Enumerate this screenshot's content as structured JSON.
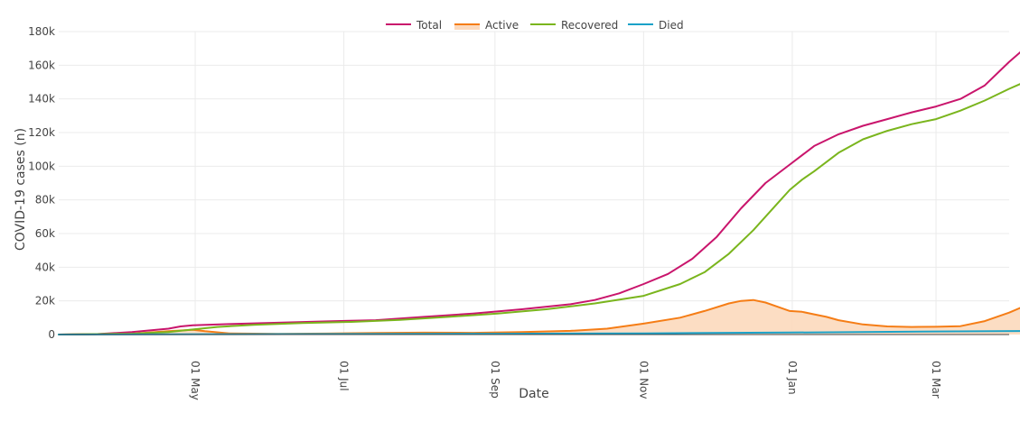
{
  "chart_data": {
    "type": "line",
    "title": "",
    "xlabel": "Date",
    "ylabel": "COVID-19 cases (n)",
    "x_unit": "days since 01 Mar",
    "xlim": [
      0,
      390
    ],
    "ylim": [
      0,
      180000
    ],
    "y_ticks": [
      0,
      20000,
      40000,
      60000,
      80000,
      100000,
      120000,
      140000,
      160000,
      180000
    ],
    "y_tick_labels": [
      "0",
      "20k",
      "40k",
      "60k",
      "80k",
      "100k",
      "120k",
      "140k",
      "160k",
      "180k"
    ],
    "x_ticks": [
      {
        "day": 56,
        "label": "01 May"
      },
      {
        "day": 117,
        "label": "01 Jul"
      },
      {
        "day": 179,
        "label": "01 Sep"
      },
      {
        "day": 240,
        "label": "01 Nov"
      },
      {
        "day": 301,
        "label": "01 Jan"
      },
      {
        "day": 360,
        "label": "01 Mar"
      }
    ],
    "grid": true,
    "legend_position": "top-center",
    "series": [
      {
        "name": "Total",
        "color": "#c9156c",
        "fill": false,
        "points": [
          [
            0,
            0
          ],
          [
            15,
            200
          ],
          [
            30,
            1500
          ],
          [
            45,
            3500
          ],
          [
            50,
            4800
          ],
          [
            55,
            5500
          ],
          [
            70,
            6200
          ],
          [
            90,
            7000
          ],
          [
            110,
            7800
          ],
          [
            130,
            8500
          ],
          [
            150,
            10500
          ],
          [
            170,
            12500
          ],
          [
            190,
            15000
          ],
          [
            210,
            18000
          ],
          [
            220,
            20500
          ],
          [
            230,
            24500
          ],
          [
            240,
            30000
          ],
          [
            250,
            36000
          ],
          [
            260,
            45000
          ],
          [
            270,
            58000
          ],
          [
            280,
            75000
          ],
          [
            290,
            90000
          ],
          [
            300,
            101000
          ],
          [
            310,
            112000
          ],
          [
            320,
            119000
          ],
          [
            330,
            124000
          ],
          [
            340,
            128000
          ],
          [
            350,
            132000
          ],
          [
            360,
            135500
          ],
          [
            370,
            140000
          ],
          [
            380,
            148000
          ],
          [
            390,
            162000
          ],
          [
            398,
            172000
          ]
        ]
      },
      {
        "name": "Active",
        "color": "#f57d16",
        "fill": true,
        "fill_color": "#fcd9bd",
        "points": [
          [
            0,
            0
          ],
          [
            30,
            500
          ],
          [
            45,
            2000
          ],
          [
            55,
            2800
          ],
          [
            60,
            2000
          ],
          [
            70,
            700
          ],
          [
            90,
            400
          ],
          [
            110,
            600
          ],
          [
            130,
            900
          ],
          [
            150,
            1100
          ],
          [
            170,
            1000
          ],
          [
            190,
            1500
          ],
          [
            210,
            2200
          ],
          [
            225,
            3500
          ],
          [
            240,
            6500
          ],
          [
            255,
            10000
          ],
          [
            265,
            14000
          ],
          [
            275,
            18500
          ],
          [
            280,
            20000
          ],
          [
            285,
            20500
          ],
          [
            290,
            19000
          ],
          [
            295,
            16500
          ],
          [
            300,
            14000
          ],
          [
            305,
            13500
          ],
          [
            310,
            12000
          ],
          [
            315,
            10500
          ],
          [
            320,
            8500
          ],
          [
            330,
            6000
          ],
          [
            340,
            4800
          ],
          [
            350,
            4500
          ],
          [
            360,
            4600
          ],
          [
            370,
            5000
          ],
          [
            380,
            8000
          ],
          [
            390,
            13000
          ],
          [
            398,
            18000
          ]
        ]
      },
      {
        "name": "Recovered",
        "color": "#7ab51d",
        "fill": false,
        "points": [
          [
            0,
            0
          ],
          [
            30,
            500
          ],
          [
            45,
            1500
          ],
          [
            55,
            3000
          ],
          [
            65,
            4500
          ],
          [
            80,
            5800
          ],
          [
            100,
            6800
          ],
          [
            120,
            7500
          ],
          [
            140,
            8700
          ],
          [
            160,
            10500
          ],
          [
            180,
            12500
          ],
          [
            200,
            15000
          ],
          [
            220,
            18500
          ],
          [
            240,
            23000
          ],
          [
            255,
            30000
          ],
          [
            265,
            37000
          ],
          [
            275,
            48000
          ],
          [
            285,
            62000
          ],
          [
            295,
            78000
          ],
          [
            300,
            86000
          ],
          [
            305,
            92000
          ],
          [
            310,
            97000
          ],
          [
            320,
            108000
          ],
          [
            330,
            116000
          ],
          [
            340,
            121000
          ],
          [
            350,
            125000
          ],
          [
            360,
            128000
          ],
          [
            370,
            133000
          ],
          [
            380,
            139000
          ],
          [
            390,
            146000
          ],
          [
            398,
            151000
          ]
        ]
      },
      {
        "name": "Died",
        "color": "#1aa2c8",
        "fill": false,
        "points": [
          [
            0,
            0
          ],
          [
            60,
            200
          ],
          [
            120,
            300
          ],
          [
            180,
            500
          ],
          [
            240,
            700
          ],
          [
            300,
            1200
          ],
          [
            360,
            1800
          ],
          [
            398,
            2100
          ]
        ]
      }
    ]
  }
}
